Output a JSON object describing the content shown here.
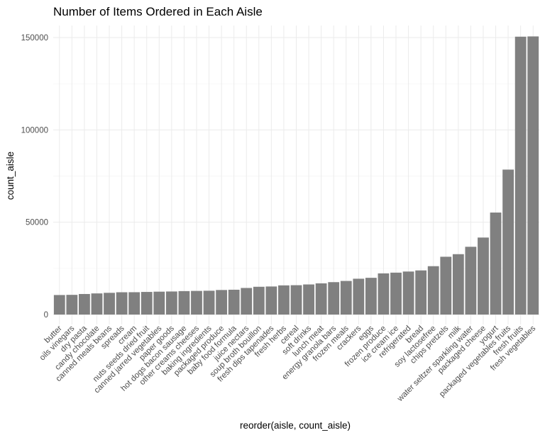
{
  "chart_data": {
    "type": "bar",
    "title": "Number of Items Ordered in Each Aisle",
    "xlabel": "reorder(aisle, count_aisle)",
    "ylabel": "count_aisle",
    "ylim": [
      0,
      150473
    ],
    "yticks": [
      0,
      50000,
      100000,
      150000
    ],
    "ytick_labels": [
      "0",
      "50000",
      "100000",
      "150000"
    ],
    "grid": true,
    "bar_color": "#808080",
    "categories": [
      "butter",
      "oils vinegars",
      "dry pasta",
      "candy chocolate",
      "canned meals beans",
      "spreads",
      "cream",
      "nuts seeds dried fruit",
      "canned jarred vegetables",
      "paper goods",
      "hot dogs bacon sausage",
      "other creams cheeses",
      "baking ingredients",
      "packaged produce",
      "baby food formula",
      "juice nectars",
      "soup broth bouillon",
      "fresh dips tapenades",
      "fresh herbs",
      "cereal",
      "soft drinks",
      "lunch meat",
      "energy granola bars",
      "frozen meals",
      "crackers",
      "eggs",
      "frozen produce",
      "ice cream ice",
      "refrigerated",
      "bread",
      "soy lactosefree",
      "chips pretzels",
      "milk",
      "water seltzer sparkling water",
      "packaged cheese",
      "yogurt",
      "packaged vegetables fruits",
      "fresh fruits",
      "fresh vegetables"
    ],
    "values": [
      10575,
      10672,
      11136,
      11453,
      11774,
      12075,
      12100,
      12250,
      12400,
      12500,
      12700,
      12800,
      12900,
      13300,
      13450,
      14400,
      15050,
      15200,
      15800,
      15900,
      16300,
      16900,
      17550,
      18200,
      19400,
      19900,
      22300,
      22700,
      23300,
      23900,
      26200,
      31300,
      32700,
      36700,
      41700,
      55240,
      78493,
      150473,
      150609
    ]
  }
}
